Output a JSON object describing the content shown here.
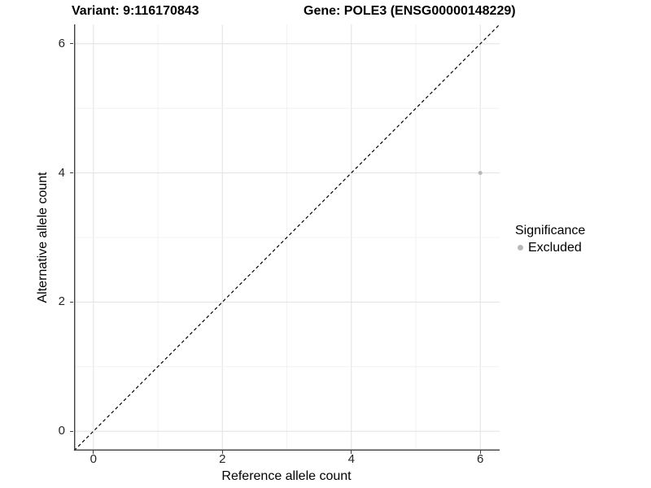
{
  "chart_data": {
    "type": "scatter",
    "title_left": "Variant: 9:116170843",
    "title_right": "Gene: POLE3 (ENSG00000148229)",
    "xlabel": "Reference allele count",
    "ylabel": "Alternative allele count",
    "xlim": [
      -0.3,
      6.3
    ],
    "ylim": [
      -0.3,
      6.3
    ],
    "xticks": [
      0,
      2,
      4,
      6
    ],
    "yticks": [
      0,
      2,
      4,
      6
    ],
    "gridlines_x": [
      0,
      1,
      2,
      3,
      4,
      5,
      6
    ],
    "gridlines_y": [
      0,
      1,
      2,
      3,
      4,
      5,
      6
    ],
    "grid": "on",
    "points": [
      {
        "x": 6,
        "y": 4,
        "series": "Excluded"
      }
    ],
    "reference_line": {
      "type": "identity",
      "from": [
        -0.3,
        -0.3
      ],
      "to": [
        6.3,
        6.3
      ],
      "style": "dashed",
      "color": "#000000"
    },
    "legend": {
      "title": "Significance",
      "position": "right",
      "items": [
        {
          "label": "Excluded",
          "color": "#b8b8b8"
        }
      ]
    }
  },
  "colors": {
    "point": "#b8b8b8",
    "gridline_major": "#e4e4e4",
    "gridline_minor": "#efefef",
    "axis_line": "#3f3f3f",
    "dashed_line": "#000000",
    "tick_label": "#262626",
    "panel_background": "#ffffff"
  }
}
